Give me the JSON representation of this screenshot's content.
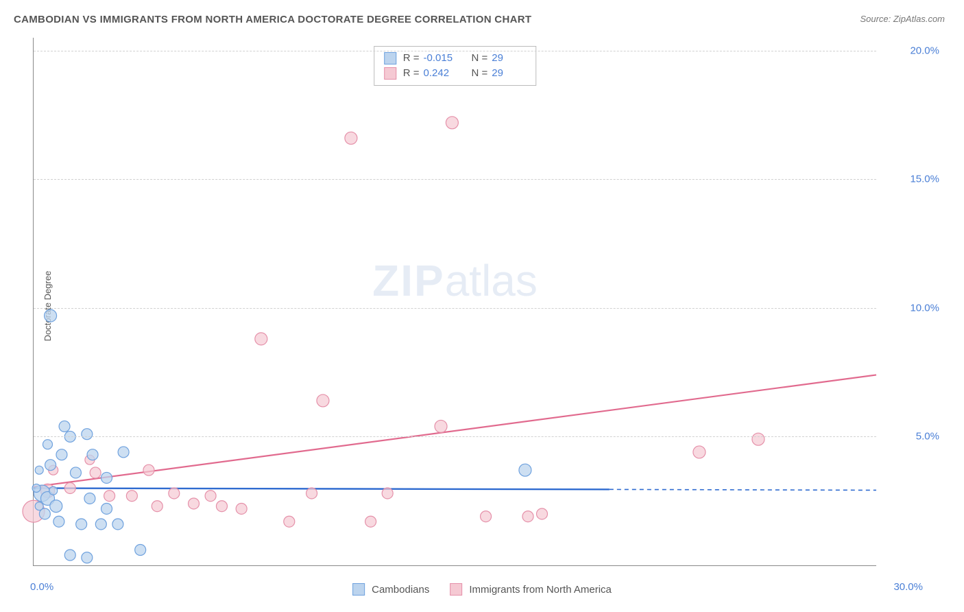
{
  "title": "CAMBODIAN VS IMMIGRANTS FROM NORTH AMERICA DOCTORATE DEGREE CORRELATION CHART",
  "source_label": "Source: ZipAtlas.com",
  "y_axis_label": "Doctorate Degree",
  "watermark_zip": "ZIP",
  "watermark_atlas": "atlas",
  "chart": {
    "type": "scatter",
    "xlim": [
      0,
      30
    ],
    "ylim": [
      0,
      20.5
    ],
    "y_ticks": [
      5,
      10,
      15,
      20
    ],
    "y_tick_labels": [
      "5.0%",
      "10.0%",
      "15.0%",
      "20.0%"
    ],
    "x_origin_label": "0.0%",
    "x_end_label": "30.0%",
    "grid_color": "#d0d0d0",
    "axis_color": "#888888",
    "tick_label_color": "#4a7fd6",
    "stats_legend": {
      "rows": [
        {
          "swatch_fill": "#bcd4ee",
          "swatch_stroke": "#6ea1de",
          "r_label": "R =",
          "r_value": "-0.015",
          "n_label": "N =",
          "n_value": "29"
        },
        {
          "swatch_fill": "#f5c9d3",
          "swatch_stroke": "#e590a9",
          "r_label": "R =",
          "r_value": " 0.242",
          "n_label": "N =",
          "n_value": "29"
        }
      ]
    },
    "bottom_legend": {
      "items": [
        {
          "swatch_fill": "#bcd4ee",
          "swatch_stroke": "#6ea1de",
          "label": "Cambodians"
        },
        {
          "swatch_fill": "#f5c9d3",
          "swatch_stroke": "#e590a9",
          "label": "Immigrants from North America"
        }
      ]
    },
    "series": [
      {
        "name": "Cambodians",
        "marker_fill": "#bcd4ee",
        "marker_stroke": "#6ea1de",
        "marker_fill_opacity": 0.75,
        "stroke_width": 1.2,
        "trend_line_color": "#2f6bd0",
        "trend_line_solid_xmax": 20.5,
        "trend_line_dash_xmax": 30,
        "trend_line_y_start": 3.0,
        "trend_line_y_solid_end": 2.95,
        "trend_line_y_dash_end": 2.92,
        "points": [
          {
            "x": 0.6,
            "y": 9.7,
            "r": 9
          },
          {
            "x": 0.3,
            "y": 2.8,
            "r": 12
          },
          {
            "x": 0.5,
            "y": 2.6,
            "r": 10
          },
          {
            "x": 0.8,
            "y": 2.3,
            "r": 9
          },
          {
            "x": 1.1,
            "y": 5.4,
            "r": 8
          },
          {
            "x": 1.3,
            "y": 5.0,
            "r": 8
          },
          {
            "x": 1.9,
            "y": 5.1,
            "r": 8
          },
          {
            "x": 1.0,
            "y": 4.3,
            "r": 8
          },
          {
            "x": 0.6,
            "y": 3.9,
            "r": 8
          },
          {
            "x": 1.5,
            "y": 3.6,
            "r": 8
          },
          {
            "x": 0.4,
            "y": 2.0,
            "r": 8
          },
          {
            "x": 0.9,
            "y": 1.7,
            "r": 8
          },
          {
            "x": 1.7,
            "y": 1.6,
            "r": 8
          },
          {
            "x": 2.4,
            "y": 1.6,
            "r": 8
          },
          {
            "x": 3.0,
            "y": 1.6,
            "r": 8
          },
          {
            "x": 2.1,
            "y": 4.3,
            "r": 8
          },
          {
            "x": 2.6,
            "y": 3.4,
            "r": 8
          },
          {
            "x": 3.2,
            "y": 4.4,
            "r": 8
          },
          {
            "x": 2.0,
            "y": 2.6,
            "r": 8
          },
          {
            "x": 2.6,
            "y": 2.2,
            "r": 8
          },
          {
            "x": 1.3,
            "y": 0.4,
            "r": 8
          },
          {
            "x": 1.9,
            "y": 0.3,
            "r": 8
          },
          {
            "x": 3.8,
            "y": 0.6,
            "r": 8
          },
          {
            "x": 0.2,
            "y": 3.7,
            "r": 6
          },
          {
            "x": 0.1,
            "y": 3.0,
            "r": 6
          },
          {
            "x": 0.2,
            "y": 2.3,
            "r": 6
          },
          {
            "x": 0.7,
            "y": 2.9,
            "r": 6
          },
          {
            "x": 17.5,
            "y": 3.7,
            "r": 9
          },
          {
            "x": 0.5,
            "y": 4.7,
            "r": 7
          }
        ]
      },
      {
        "name": "Immigrants from North America",
        "marker_fill": "#f5c9d3",
        "marker_stroke": "#e590a9",
        "marker_fill_opacity": 0.7,
        "stroke_width": 1.2,
        "trend_line_color": "#e16a8e",
        "trend_line_y_start": 3.05,
        "trend_line_y_end": 7.4,
        "trend_line_xmax": 30,
        "points": [
          {
            "x": 0.0,
            "y": 2.1,
            "r": 16
          },
          {
            "x": 0.5,
            "y": 2.9,
            "r": 10
          },
          {
            "x": 1.3,
            "y": 3.0,
            "r": 8
          },
          {
            "x": 2.2,
            "y": 3.6,
            "r": 8
          },
          {
            "x": 2.7,
            "y": 2.7,
            "r": 8
          },
          {
            "x": 3.5,
            "y": 2.7,
            "r": 8
          },
          {
            "x": 4.1,
            "y": 3.7,
            "r": 8
          },
          {
            "x": 4.4,
            "y": 2.3,
            "r": 8
          },
          {
            "x": 5.0,
            "y": 2.8,
            "r": 8
          },
          {
            "x": 5.7,
            "y": 2.4,
            "r": 8
          },
          {
            "x": 6.3,
            "y": 2.7,
            "r": 8
          },
          {
            "x": 6.7,
            "y": 2.3,
            "r": 8
          },
          {
            "x": 7.4,
            "y": 2.2,
            "r": 8
          },
          {
            "x": 8.1,
            "y": 8.8,
            "r": 9
          },
          {
            "x": 9.1,
            "y": 1.7,
            "r": 8
          },
          {
            "x": 9.9,
            "y": 2.8,
            "r": 8
          },
          {
            "x": 10.3,
            "y": 6.4,
            "r": 9
          },
          {
            "x": 11.3,
            "y": 16.6,
            "r": 9
          },
          {
            "x": 12.0,
            "y": 1.7,
            "r": 8
          },
          {
            "x": 12.6,
            "y": 2.8,
            "r": 8
          },
          {
            "x": 14.5,
            "y": 5.4,
            "r": 9
          },
          {
            "x": 14.9,
            "y": 17.2,
            "r": 9
          },
          {
            "x": 16.1,
            "y": 1.9,
            "r": 8
          },
          {
            "x": 17.6,
            "y": 1.9,
            "r": 8
          },
          {
            "x": 18.1,
            "y": 2.0,
            "r": 8
          },
          {
            "x": 23.7,
            "y": 4.4,
            "r": 9
          },
          {
            "x": 25.8,
            "y": 4.9,
            "r": 9
          },
          {
            "x": 2.0,
            "y": 4.1,
            "r": 7
          },
          {
            "x": 0.7,
            "y": 3.7,
            "r": 7
          }
        ]
      }
    ]
  }
}
